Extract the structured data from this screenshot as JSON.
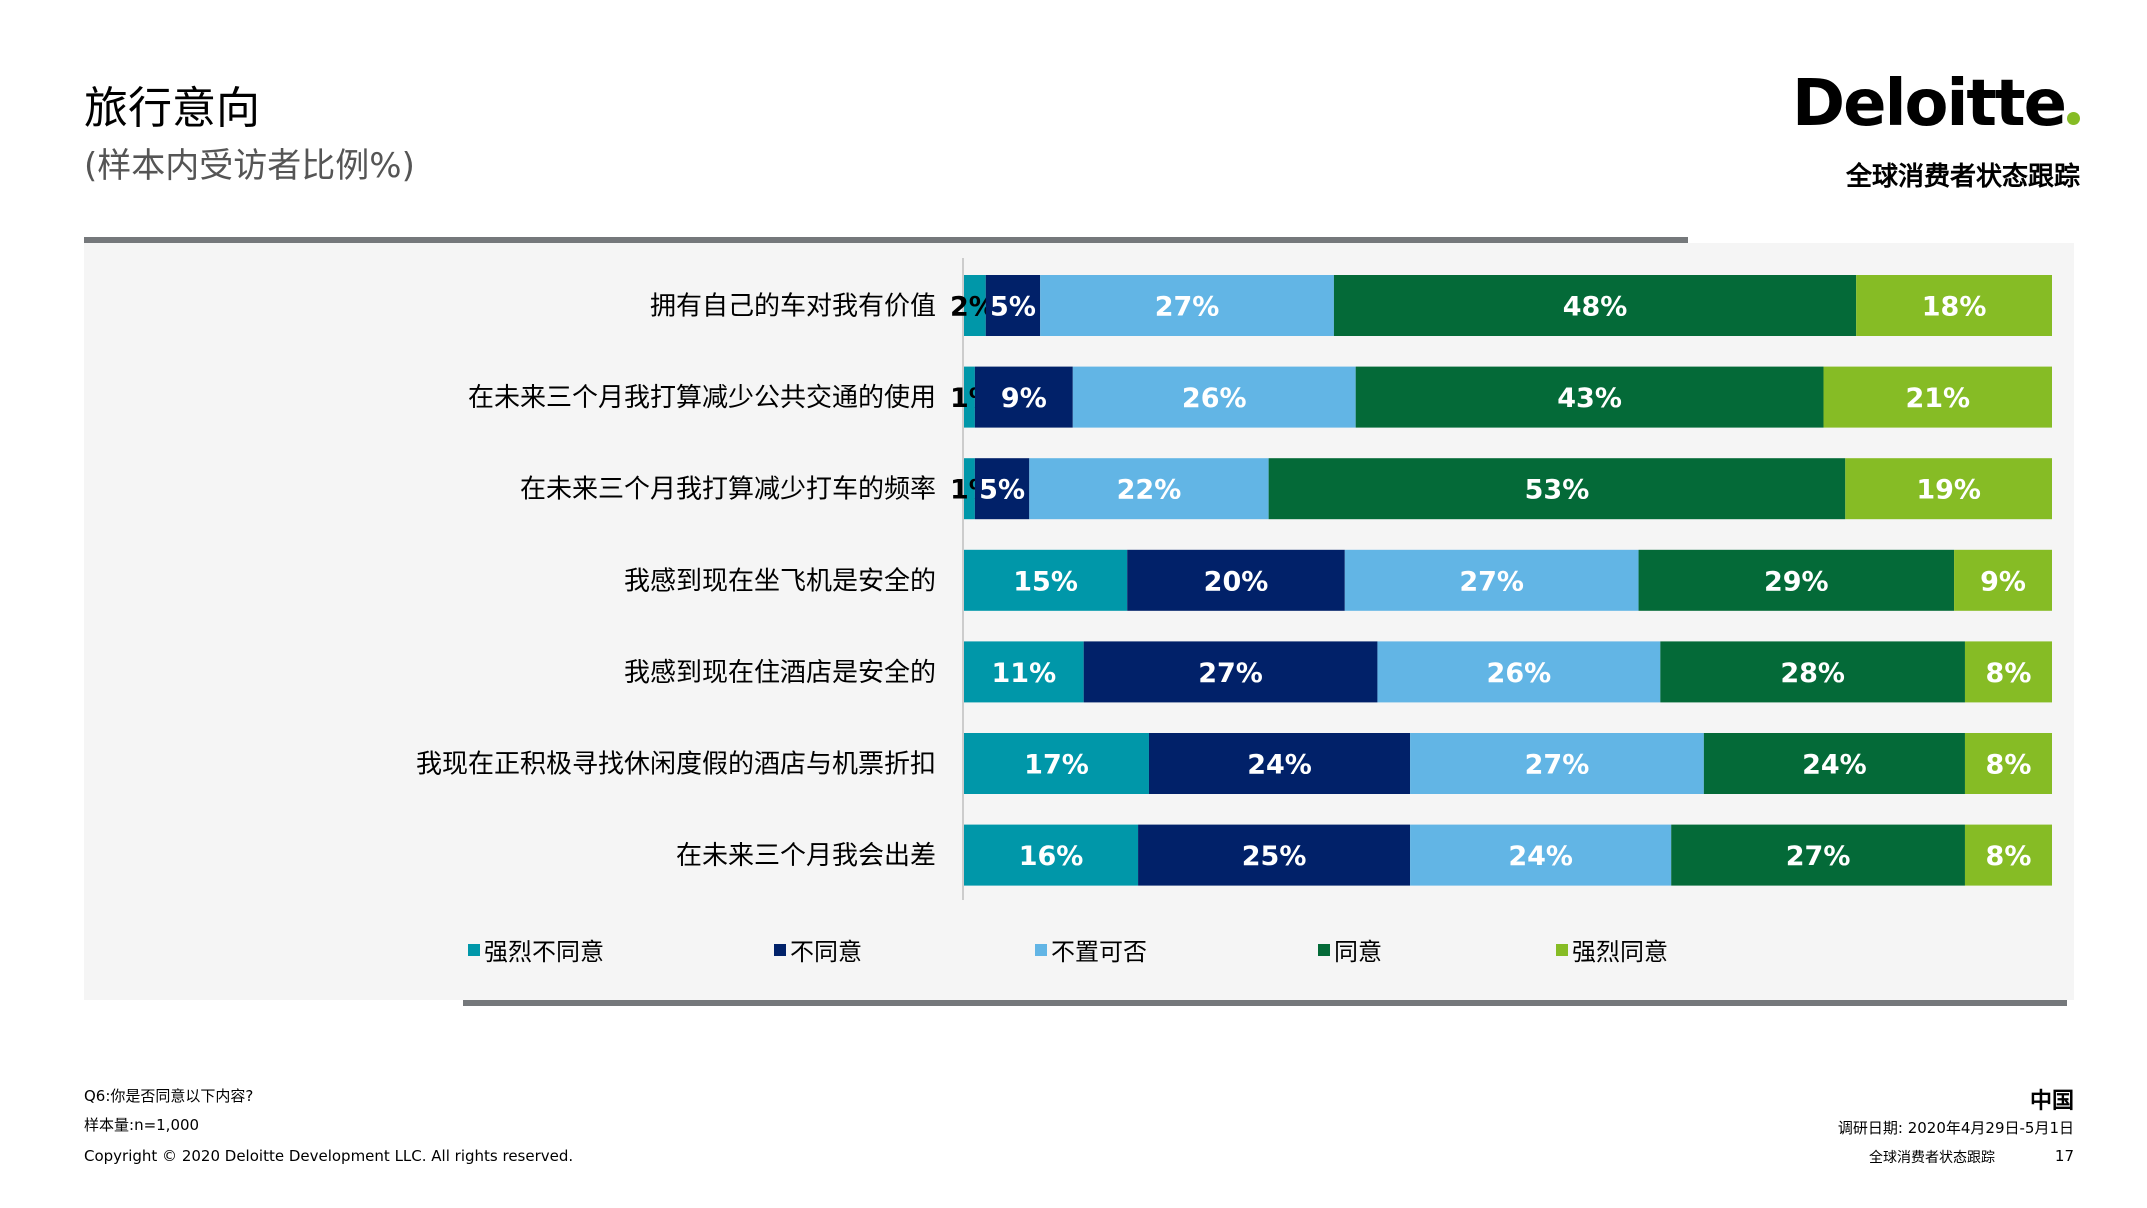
{
  "header": {
    "title": "旅行意向",
    "subtitle": "(样本内受访者比例%)",
    "brand": "Deloitte",
    "brand_sub": "全球消费者状态跟踪"
  },
  "chart_data": {
    "type": "bar",
    "orientation": "horizontal",
    "stacked": true,
    "categories": [
      "拥有自己的车对我有价值",
      "在未来三个月我打算减少公共交通的使用",
      "在未来三个月我打算减少打车的频率",
      "我感到现在坐飞机是安全的",
      "我感到现在住酒店是安全的",
      "我现在正积极寻找休闲度假的酒店与机票折扣",
      "在未来三个月我会出差"
    ],
    "series": [
      {
        "name": "强烈不同意",
        "color": "#0097a9",
        "values": [
          2,
          1,
          1,
          15,
          11,
          17,
          16
        ]
      },
      {
        "name": "不同意",
        "color": "#012169",
        "values": [
          5,
          9,
          5,
          20,
          27,
          24,
          25
        ]
      },
      {
        "name": "不置可否",
        "color": "#62b5e5",
        "values": [
          27,
          26,
          22,
          27,
          26,
          27,
          24
        ]
      },
      {
        "name": "同意",
        "color": "#046a38",
        "values": [
          48,
          43,
          53,
          29,
          28,
          24,
          27
        ]
      },
      {
        "name": "强烈同意",
        "color": "#86bc25",
        "values": [
          18,
          21,
          19,
          9,
          8,
          8,
          8
        ]
      }
    ],
    "xlim": [
      0,
      100
    ],
    "legend_position": "bottom"
  },
  "footer": {
    "question": "Q6:你是否同意以下内容?",
    "sample_label": "样本量:",
    "sample_value": "n=1,000",
    "copyright": "Copyright © 2020 Deloitte Development LLC. All rights reserved.",
    "country": "中国",
    "survey_date_label": "调研日期:",
    "survey_date": "2020年4月29日-5月1日",
    "tracker": "全球消费者状态跟踪",
    "page_number": "17"
  }
}
